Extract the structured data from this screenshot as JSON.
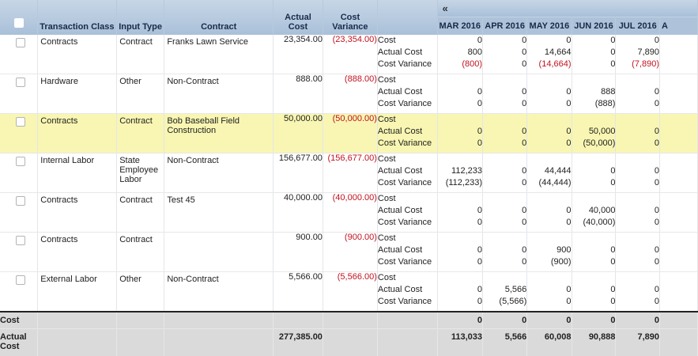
{
  "header": {
    "select_all_checked": false,
    "columns": {
      "transaction_class": "Transaction Class",
      "input_type": "Input Type",
      "contract": "Contract",
      "actual_cost": "Actual Cost",
      "cost_variance": "Cost Variance"
    },
    "collapse_icon": "«",
    "months": [
      "MAR 2016",
      "APR 2016",
      "MAY 2016",
      "JUN 2016",
      "JUL 2016",
      "A"
    ]
  },
  "metric_labels": [
    "Cost",
    "Actual Cost",
    "Cost Variance"
  ],
  "rows": [
    {
      "transaction_class": "Contracts",
      "input_type": "Contract",
      "contract": "Franks Lawn Service",
      "actual_cost": "23,354.00",
      "cost_variance": "(23,354.00)",
      "highlighted": false,
      "months": [
        {
          "cost": "0",
          "actual": "800",
          "variance": "(800)"
        },
        {
          "cost": "0",
          "actual": "0",
          "variance": "0"
        },
        {
          "cost": "0",
          "actual": "14,664",
          "variance": "(14,664)"
        },
        {
          "cost": "0",
          "actual": "0",
          "variance": "0"
        },
        {
          "cost": "0",
          "actual": "7,890",
          "variance": "(7,890)"
        }
      ]
    },
    {
      "transaction_class": "Hardware",
      "input_type": "Other",
      "contract": "Non-Contract",
      "actual_cost": "888.00",
      "cost_variance": "(888.00)",
      "highlighted": false,
      "months": [
        {
          "cost": "",
          "actual": "0",
          "variance": "0"
        },
        {
          "cost": "",
          "actual": "0",
          "variance": "0"
        },
        {
          "cost": "",
          "actual": "0",
          "variance": "0"
        },
        {
          "cost": "",
          "actual": "888",
          "variance": "(888)"
        },
        {
          "cost": "",
          "actual": "0",
          "variance": "0"
        }
      ]
    },
    {
      "transaction_class": "Contracts",
      "input_type": "Contract",
      "contract": "Bob Baseball Field Construction",
      "actual_cost": "50,000.00",
      "cost_variance": "(50,000.00)",
      "highlighted": true,
      "months": [
        {
          "cost": "",
          "actual": "0",
          "variance": "0"
        },
        {
          "cost": "",
          "actual": "0",
          "variance": "0"
        },
        {
          "cost": "",
          "actual": "0",
          "variance": "0"
        },
        {
          "cost": "",
          "actual": "50,000",
          "variance": "(50,000)"
        },
        {
          "cost": "",
          "actual": "0",
          "variance": "0"
        }
      ]
    },
    {
      "transaction_class": "Internal Labor",
      "input_type": "State Employee Labor",
      "contract": "Non-Contract",
      "actual_cost": "156,677.00",
      "cost_variance": "(156,677.00)",
      "highlighted": false,
      "months": [
        {
          "cost": "",
          "actual": "112,233",
          "variance": "(112,233)"
        },
        {
          "cost": "",
          "actual": "0",
          "variance": "0"
        },
        {
          "cost": "",
          "actual": "44,444",
          "variance": "(44,444)"
        },
        {
          "cost": "",
          "actual": "0",
          "variance": "0"
        },
        {
          "cost": "",
          "actual": "0",
          "variance": "0"
        }
      ]
    },
    {
      "transaction_class": "Contracts",
      "input_type": "Contract",
      "contract": "Test 45",
      "actual_cost": "40,000.00",
      "cost_variance": "(40,000.00)",
      "highlighted": false,
      "months": [
        {
          "cost": "",
          "actual": "0",
          "variance": "0"
        },
        {
          "cost": "",
          "actual": "0",
          "variance": "0"
        },
        {
          "cost": "",
          "actual": "0",
          "variance": "0"
        },
        {
          "cost": "",
          "actual": "40,000",
          "variance": "(40,000)"
        },
        {
          "cost": "",
          "actual": "0",
          "variance": "0"
        }
      ]
    },
    {
      "transaction_class": "Contracts",
      "input_type": "Contract",
      "contract": "",
      "actual_cost": "900.00",
      "cost_variance": "(900.00)",
      "highlighted": false,
      "months": [
        {
          "cost": "",
          "actual": "0",
          "variance": "0"
        },
        {
          "cost": "",
          "actual": "0",
          "variance": "0"
        },
        {
          "cost": "",
          "actual": "900",
          "variance": "(900)"
        },
        {
          "cost": "",
          "actual": "0",
          "variance": "0"
        },
        {
          "cost": "",
          "actual": "0",
          "variance": "0"
        }
      ]
    },
    {
      "transaction_class": "External Labor",
      "input_type": "Other",
      "contract": "Non-Contract",
      "actual_cost": "5,566.00",
      "cost_variance": "(5,566.00)",
      "highlighted": false,
      "months": [
        {
          "cost": "",
          "actual": "0",
          "variance": "0"
        },
        {
          "cost": "",
          "actual": "5,566",
          "variance": "(5,566)"
        },
        {
          "cost": "",
          "actual": "0",
          "variance": "0"
        },
        {
          "cost": "",
          "actual": "0",
          "variance": "0"
        },
        {
          "cost": "",
          "actual": "0",
          "variance": "0"
        }
      ]
    }
  ],
  "totals": {
    "cost": {
      "label": "Cost",
      "actual_cost": "",
      "months": [
        "0",
        "0",
        "0",
        "0",
        "0"
      ]
    },
    "actual_cost": {
      "label": "Actual Cost",
      "actual_cost": "277,385.00",
      "months": [
        "113,033",
        "5,566",
        "60,008",
        "90,888",
        "7,890"
      ]
    }
  },
  "colors": {
    "header": "#aec3da",
    "highlight_row": "#f8f6b2",
    "negative": "#c1121f",
    "totals_bg": "#dadada"
  }
}
